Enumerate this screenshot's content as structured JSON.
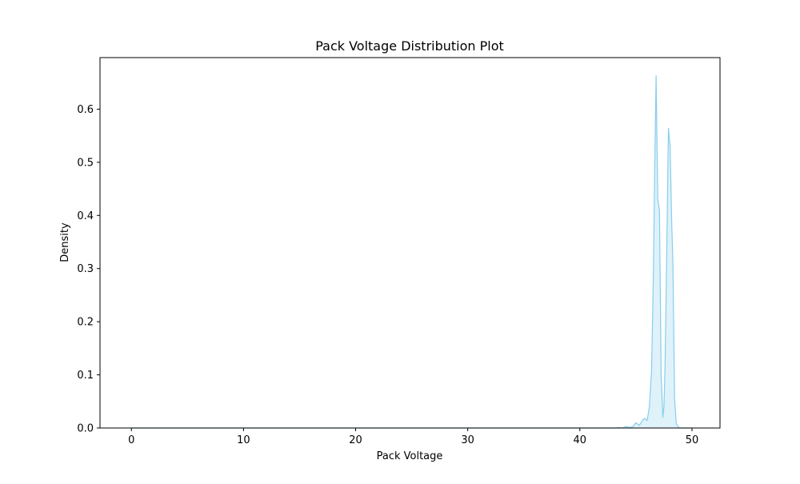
{
  "colors": {
    "line": "#87ceeb",
    "fill": "#87ceeb",
    "axes": "#000000",
    "background": "#ffffff"
  },
  "chart_data": {
    "type": "area",
    "title": "Pack Voltage Distribution Plot",
    "xlabel": "Pack Voltage",
    "ylabel": "Density",
    "xlim": [
      -2.8,
      52.5
    ],
    "ylim": [
      0,
      0.697
    ],
    "xticks": [
      "0",
      "10",
      "20",
      "30",
      "40",
      "50"
    ],
    "yticks": [
      "0.0",
      "0.1",
      "0.2",
      "0.3",
      "0.4",
      "0.5",
      "0.6"
    ],
    "grid": false,
    "legend": "none",
    "series": [
      {
        "x": [
          0,
          5,
          10,
          15,
          20,
          25,
          30,
          35,
          40,
          42.5,
          43.2,
          43.5,
          43.8,
          44.1,
          44.4,
          44.7,
          45.0,
          45.3,
          45.6,
          45.8,
          46.0,
          46.2,
          46.4,
          46.55,
          46.7,
          46.8,
          46.95,
          47.1,
          47.25,
          47.4,
          47.5,
          47.6,
          47.75,
          47.9,
          48.05,
          48.2,
          48.3,
          48.45,
          48.6,
          48.75,
          48.9,
          49.05,
          49.2,
          49.4,
          49.7,
          49.9
        ],
        "y": [
          0,
          0,
          0,
          0,
          0,
          0,
          0,
          0,
          0,
          0.0,
          0.0,
          0.001,
          0.0,
          0.003,
          0.001,
          0.002,
          0.01,
          0.005,
          0.015,
          0.018,
          0.014,
          0.04,
          0.11,
          0.28,
          0.52,
          0.663,
          0.43,
          0.41,
          0.1,
          0.02,
          0.04,
          0.12,
          0.33,
          0.564,
          0.53,
          0.38,
          0.31,
          0.055,
          0.008,
          0.003,
          0.0,
          0,
          0,
          0,
          0,
          0
        ]
      }
    ]
  }
}
